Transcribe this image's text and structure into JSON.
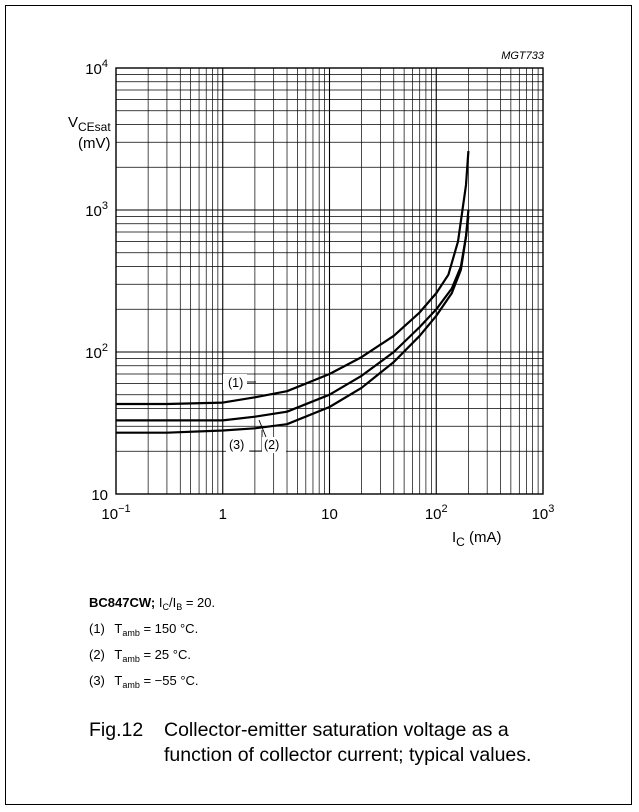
{
  "chart_data": {
    "type": "line",
    "code": "MGT733",
    "x_scale": "log",
    "y_scale": "log",
    "xlim": [
      0.1,
      1000
    ],
    "ylim": [
      10,
      10000
    ],
    "xlabel": "I_C (mA)",
    "ylabel": "V_CEsat (mV)",
    "x_ticks": [
      "10^-1",
      "1",
      "10",
      "10^2",
      "10^3"
    ],
    "y_ticks": [
      "10",
      "10^2",
      "10^3",
      "10^4"
    ],
    "grid": true,
    "series": [
      {
        "name": "(1)",
        "x": [
          0.1,
          0.3,
          1,
          2,
          4,
          10,
          20,
          40,
          70,
          100,
          130,
          160,
          190,
          200
        ],
        "y": [
          43,
          43,
          44,
          48,
          53,
          70,
          92,
          130,
          190,
          260,
          350,
          600,
          1500,
          2600
        ]
      },
      {
        "name": "(2)",
        "x": [
          0.1,
          0.3,
          1,
          2,
          4,
          10,
          20,
          40,
          70,
          100,
          140,
          170,
          190,
          200
        ],
        "y": [
          33,
          33,
          33,
          35,
          38,
          50,
          68,
          100,
          150,
          200,
          280,
          400,
          650,
          900
        ]
      },
      {
        "name": "(3)",
        "x": [
          0.1,
          0.3,
          1,
          2,
          4,
          10,
          20,
          40,
          70,
          100,
          140,
          170,
          190,
          200
        ],
        "y": [
          27,
          27,
          28,
          29,
          31,
          41,
          56,
          85,
          130,
          180,
          260,
          380,
          650,
          1000
        ]
      }
    ]
  },
  "notes": {
    "device": "BC847CW;",
    "ratio_prefix": "I",
    "ratio_sub1": "C",
    "ratio_mid": "/I",
    "ratio_sub2": "B",
    "ratio_value": " = 20.",
    "items": [
      {
        "num": "(1)",
        "t": "T",
        "sub": "amb",
        "value": " = 150 °C."
      },
      {
        "num": "(2)",
        "t": "T",
        "sub": "amb",
        "value": " = 25 °C."
      },
      {
        "num": "(3)",
        "t": "T",
        "sub": "amb",
        "value": " = −55 °C."
      }
    ]
  },
  "caption": {
    "fig": "Fig.12",
    "line1": "Collector-emitter saturation voltage as a",
    "line2": "function of collector current; typical values."
  }
}
